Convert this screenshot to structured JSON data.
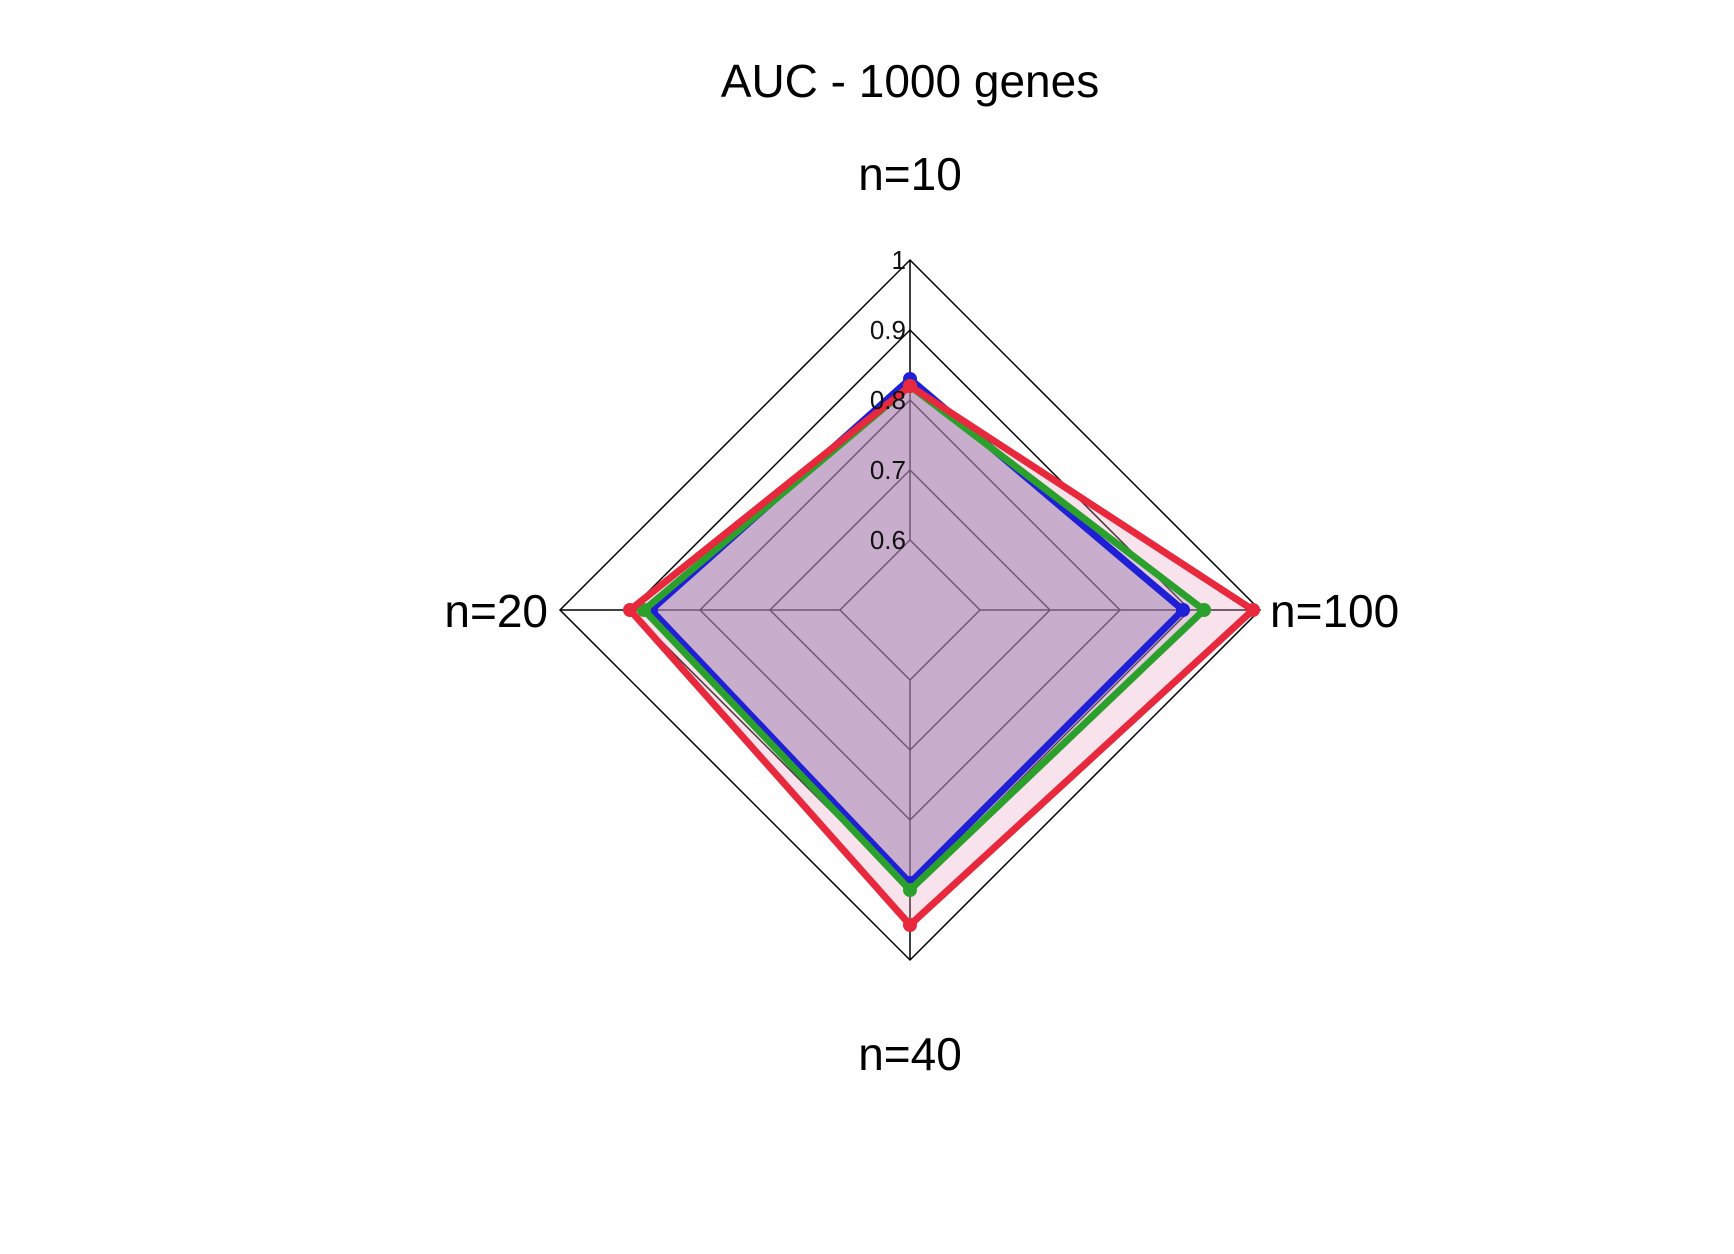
{
  "chart_data": {
    "type": "radar",
    "title": "AUC - 1000 genes",
    "axes": [
      "n=10",
      "n=100",
      "n=40",
      "n=20"
    ],
    "rlim": [
      0.5,
      1
    ],
    "ticks": [
      {
        "value": 0.6,
        "label": "0.6"
      },
      {
        "value": 0.7,
        "label": "0.7"
      },
      {
        "value": 0.8,
        "label": "0.8"
      },
      {
        "value": 0.9,
        "label": "0.9"
      },
      {
        "value": 1.0,
        "label": "1"
      }
    ],
    "grid": true,
    "legend": "none",
    "series": [
      {
        "color": "#1f1fd6",
        "fill": "#6a5aa0",
        "fill_opacity": 0.35,
        "values": [
          0.83,
          0.89,
          0.89,
          0.87
        ]
      },
      {
        "color": "#2ca02c",
        "fill": "#8a7fb0",
        "fill_opacity": 0.25,
        "values": [
          0.82,
          0.92,
          0.9,
          0.88
        ]
      },
      {
        "color": "#e8283c",
        "fill": "#e8a0c0",
        "fill_opacity": 0.3,
        "values": [
          0.82,
          0.99,
          0.95,
          0.9
        ]
      }
    ]
  }
}
